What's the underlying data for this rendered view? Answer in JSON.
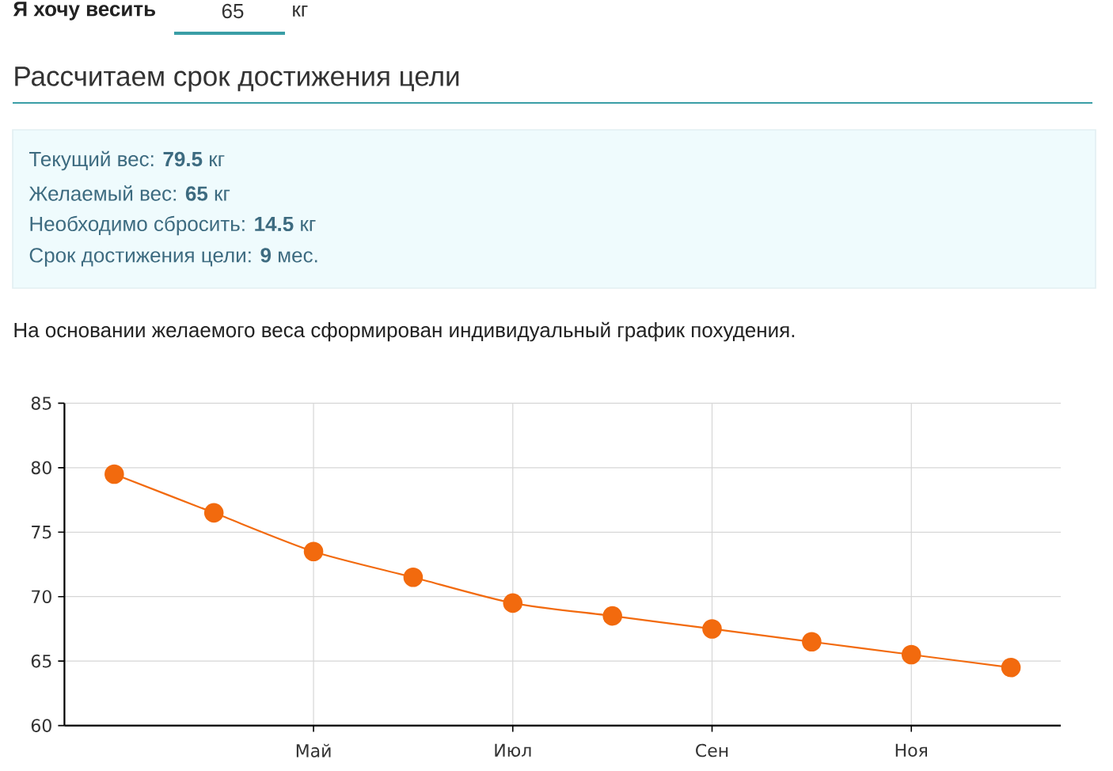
{
  "chart_data": {
    "type": "line",
    "title": "Рассчитаем срок достижения цели",
    "annotations": [
      "Я хочу весить",
      "65",
      "кг",
      "Текущий вес: **79.5** кг",
      "Желаемый вес: **65** кг",
      "Необходимо сбросить: **14.5** кг",
      "Срок достижения цели: **9** мес.",
      "На основании желаемого веса сформирован индивидуальный график похудения."
    ],
    "categories": [
      null,
      null,
      "Май",
      null,
      "Июл",
      null,
      "Сен",
      null,
      "Ноя",
      null
    ],
    "series": [
      {
        "color": "#f26a0e",
        "values": [
          79.5,
          76.5,
          73.5,
          71.5,
          69.5,
          68.5,
          67.5,
          66.5,
          65.5,
          64.5
        ]
      }
    ],
    "ylim": [
      60,
      85
    ],
    "yticks": [
      60,
      65,
      70,
      75,
      80,
      85
    ],
    "grid": true,
    "marker": "circle",
    "line_style": "solid"
  }
}
